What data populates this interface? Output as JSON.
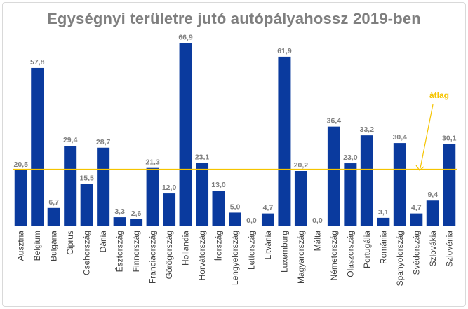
{
  "chart_data": {
    "type": "bar",
    "title": "Egységnyi területre jutó autópályahossz 2019-ben",
    "categories": [
      "Ausztria",
      "Belgium",
      "Bulgária",
      "Ciprus",
      "Csehország",
      "Dánia",
      "Észtország",
      "Finnország",
      "Franciaország",
      "Görögország",
      "Hollandia",
      "Horvátország",
      "Írország",
      "Lengyelország",
      "Lettország",
      "Litvánia",
      "Luxemburg",
      "Magyarország",
      "Málta",
      "Németország",
      "Olaszország",
      "Portugália",
      "Románia",
      "Spanyolország",
      "Svédország",
      "Szlovákia",
      "Szlovénia"
    ],
    "values": [
      20.5,
      57.8,
      6.7,
      29.4,
      15.5,
      28.7,
      3.3,
      2.6,
      21.3,
      12.0,
      66.9,
      23.1,
      13.0,
      5.0,
      0.0,
      4.7,
      61.9,
      20.2,
      0.0,
      36.4,
      23.0,
      33.2,
      3.1,
      30.4,
      4.7,
      9.4,
      30.1
    ],
    "value_labels": [
      "20,5",
      "57,8",
      "6,7",
      "29,4",
      "15,5",
      "28,7",
      "3,3",
      "2,6",
      "21,3",
      "12,0",
      "66,9",
      "23,1",
      "13,0",
      "5,0",
      "0,0",
      "4,7",
      "61,9",
      "20,2",
      "0,0",
      "36,4",
      "23,0",
      "33,2",
      "3,1",
      "30,4",
      "4,7",
      "9,4",
      "30,1"
    ],
    "average": {
      "label": "átlag",
      "value": 20.5
    },
    "ylim": [
      0,
      70
    ],
    "xlabel": "",
    "ylabel": "",
    "grid": false,
    "colors": {
      "bar": "#0a3a9e",
      "average_line": "#f5c400",
      "value_label": "#7f7f7f",
      "title": "#7f7f7f"
    }
  }
}
